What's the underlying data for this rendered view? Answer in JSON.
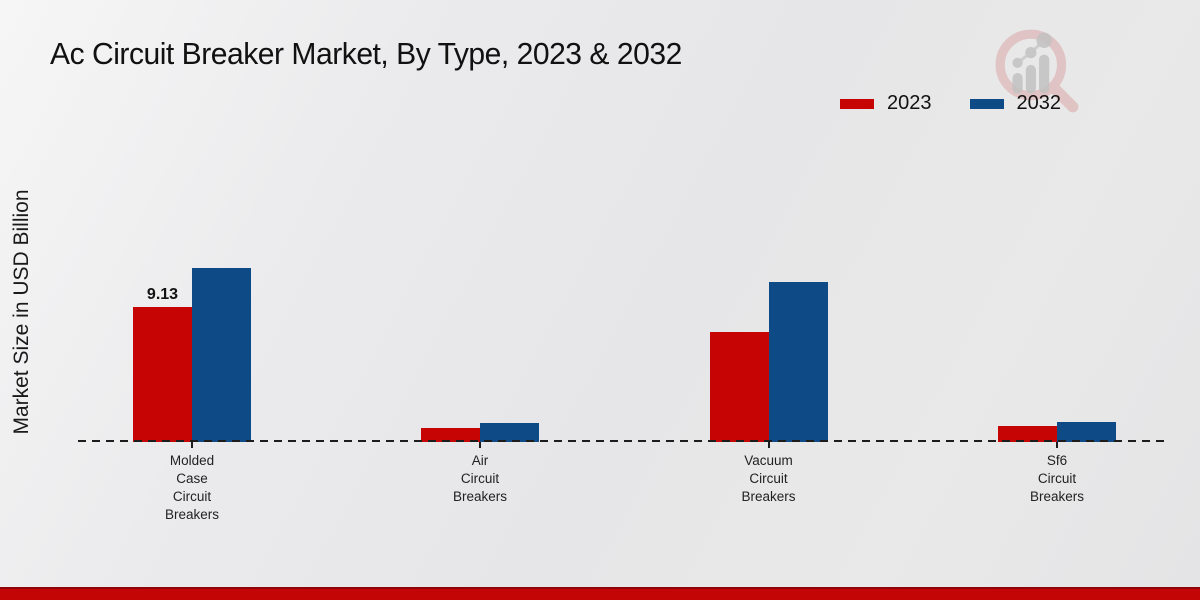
{
  "page_title": "Ac Circuit Breaker Market, By Type, 2023 & 2032",
  "chart_data": {
    "type": "bar",
    "title": "Ac Circuit Breaker Market, By Type, 2023 & 2032",
    "xlabel": "",
    "ylabel": "Market Size in USD Billion",
    "categories": [
      "Molded Case Circuit Breakers",
      "Air Circuit Breakers",
      "Vacuum Circuit Breakers",
      "Sf6 Circuit Breakers"
    ],
    "category_lines": [
      [
        "Molded",
        "Case",
        "Circuit",
        "Breakers"
      ],
      [
        "Air",
        "Circuit",
        "Breakers"
      ],
      [
        "Vacuum",
        "Circuit",
        "Breakers"
      ],
      [
        "Sf6",
        "Circuit",
        "Breakers"
      ]
    ],
    "series": [
      {
        "name": "2023",
        "color": "#c70404",
        "values": [
          9.13,
          0.95,
          7.44,
          1.08
        ]
      },
      {
        "name": "2032",
        "color": "#0e4a85",
        "values": [
          11.77,
          1.28,
          10.82,
          1.35
        ]
      }
    ],
    "data_labels": [
      {
        "series": "2023",
        "category_index": 0,
        "text": "9.13"
      }
    ],
    "ylim": [
      0,
      12.5
    ],
    "grid": false,
    "baseline_style": "dashed",
    "legend_position": "top-right"
  },
  "branding": {
    "logo_name": "magnifier-bar-chart-logo",
    "accent_bar_color": "#c40506",
    "logo_glass_color": "#d9a0a0",
    "logo_bars_color": "#c2c2c2"
  }
}
